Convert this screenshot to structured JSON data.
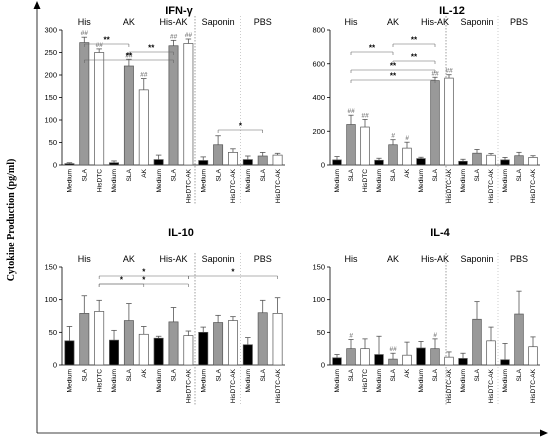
{
  "figure": {
    "y_axis_label": "Cytokine Production (pg/ml)",
    "colors": {
      "Medium": "#000000",
      "SLA": "#999999",
      "HisDTC": "#ffffff",
      "AK": "#ffffff",
      "HisDTC-AK": "#ffffff",
      "outline": "#555555"
    }
  },
  "chart_data": [
    {
      "type": "bar",
      "title": "IFN-γ",
      "ylim": [
        0,
        300
      ],
      "yticks": [
        "0",
        "50",
        "100",
        "150",
        "200",
        "250",
        "300"
      ],
      "groups": [
        {
          "label": "His",
          "categories": [
            "Medium",
            "SLA",
            "HisDTC"
          ],
          "values": [
            3,
            272,
            250
          ],
          "errors": [
            2,
            12,
            8
          ],
          "annotations": [
            "",
            "##",
            "##"
          ]
        },
        {
          "label": "AK",
          "categories": [
            "Medium",
            "SLA",
            "AK"
          ],
          "values": [
            5,
            220,
            167
          ],
          "errors": [
            4,
            15,
            25
          ],
          "annotations": [
            "",
            "##",
            "##"
          ]
        },
        {
          "label": "His-AK",
          "categories": [
            "Medium",
            "SLA",
            "HisDTC-AK"
          ],
          "values": [
            12,
            265,
            270
          ],
          "errors": [
            10,
            12,
            10
          ],
          "annotations": [
            "",
            "##",
            "##"
          ]
        },
        {
          "label": "Saponin",
          "categories": [
            "Medium",
            "SLA",
            "HisDTC-AK"
          ],
          "values": [
            10,
            45,
            28
          ],
          "errors": [
            8,
            20,
            8
          ],
          "annotations": [
            "",
            "",
            ""
          ]
        },
        {
          "label": "PBS",
          "categories": [
            "Medium",
            "SLA",
            "HisDTC-AK"
          ],
          "values": [
            12,
            20,
            22
          ],
          "errors": [
            8,
            8,
            4
          ],
          "annotations": [
            "",
            "",
            ""
          ]
        }
      ],
      "significance": [
        {
          "label": "**",
          "from": [
            0,
            1
          ],
          "to": [
            1,
            1
          ]
        },
        {
          "label": "**",
          "from": [
            1,
            1
          ],
          "to": [
            2,
            1
          ]
        },
        {
          "label": "**",
          "from": [
            0,
            1
          ],
          "to": [
            2,
            1
          ]
        },
        {
          "label": "*",
          "from": [
            3,
            1
          ],
          "to": [
            4,
            1
          ]
        }
      ]
    },
    {
      "type": "bar",
      "title": "IL-12",
      "ylim": [
        0,
        800
      ],
      "yticks": [
        "0",
        "200",
        "400",
        "600",
        "800"
      ],
      "groups": [
        {
          "label": "His",
          "categories": [
            "Medium",
            "SLA",
            "HisDTC"
          ],
          "values": [
            30,
            240,
            225
          ],
          "errors": [
            20,
            55,
            45
          ],
          "annotations": [
            "",
            "##",
            "##"
          ]
        },
        {
          "label": "AK",
          "categories": [
            "Medium",
            "SLA",
            "AK"
          ],
          "values": [
            28,
            120,
            100
          ],
          "errors": [
            12,
            30,
            35
          ],
          "annotations": [
            "",
            "#",
            "#"
          ]
        },
        {
          "label": "His-AK",
          "categories": [
            "Medium",
            "SLA",
            "HisDTC-AK"
          ],
          "values": [
            38,
            500,
            515
          ],
          "errors": [
            8,
            20,
            20
          ],
          "annotations": [
            "",
            "##",
            "##"
          ]
        },
        {
          "label": "Saponin",
          "categories": [
            "Medium",
            "SLA",
            "HisDTC-AK"
          ],
          "values": [
            22,
            70,
            58
          ],
          "errors": [
            12,
            22,
            10
          ],
          "annotations": [
            "",
            "",
            ""
          ]
        },
        {
          "label": "PBS",
          "categories": [
            "Medium",
            "SLA",
            "HisDTC-AK"
          ],
          "values": [
            30,
            55,
            45
          ],
          "errors": [
            15,
            20,
            10
          ],
          "annotations": [
            "",
            "",
            ""
          ]
        }
      ],
      "significance": [
        {
          "label": "**",
          "from": [
            1,
            1
          ],
          "to": [
            2,
            1
          ]
        },
        {
          "label": "**",
          "from": [
            0,
            1
          ],
          "to": [
            1,
            1
          ]
        },
        {
          "label": "**",
          "from": [
            1,
            1
          ],
          "to": [
            2,
            1
          ]
        },
        {
          "label": "**",
          "from": [
            0,
            1
          ],
          "to": [
            2,
            1
          ]
        },
        {
          "label": "**",
          "from": [
            0,
            1
          ],
          "to": [
            2,
            1
          ]
        }
      ]
    },
    {
      "type": "bar",
      "title": "IL-10",
      "ylim": [
        0,
        150
      ],
      "yticks": [
        "0",
        "50",
        "100",
        "150"
      ],
      "groups": [
        {
          "label": "His",
          "categories": [
            "Medium",
            "SLA",
            "HisDTC"
          ],
          "values": [
            37,
            79,
            82
          ],
          "errors": [
            22,
            27,
            17
          ],
          "annotations": [
            "",
            "",
            ""
          ]
        },
        {
          "label": "AK",
          "categories": [
            "Medium",
            "SLA",
            "AK"
          ],
          "values": [
            38,
            68,
            47
          ],
          "errors": [
            15,
            26,
            12
          ],
          "annotations": [
            "",
            "",
            ""
          ]
        },
        {
          "label": "His-AK",
          "categories": [
            "Medium",
            "SLA",
            "HisDTC-AK"
          ],
          "values": [
            41,
            66,
            45
          ],
          "errors": [
            3,
            22,
            7
          ],
          "annotations": [
            "",
            "",
            ""
          ]
        },
        {
          "label": "Saponin",
          "categories": [
            "Medium",
            "SLA",
            "HisDTC-AK"
          ],
          "values": [
            50,
            65,
            68
          ],
          "errors": [
            8,
            11,
            6
          ],
          "annotations": [
            "",
            "",
            ""
          ]
        },
        {
          "label": "PBS",
          "categories": [
            "Medium",
            "SLA",
            "HisDTC-AK"
          ],
          "values": [
            31,
            80,
            79
          ],
          "errors": [
            11,
            19,
            24
          ],
          "annotations": [
            "",
            "",
            ""
          ]
        }
      ],
      "significance": [
        {
          "label": "*",
          "from": [
            0,
            2
          ],
          "to": [
            2,
            2
          ]
        },
        {
          "label": "*",
          "from": [
            0,
            2
          ],
          "to": [
            1,
            2
          ]
        },
        {
          "label": "*",
          "from": [
            0,
            2
          ],
          "to": [
            2,
            2
          ]
        },
        {
          "label": "*",
          "from": [
            2,
            2
          ],
          "to": [
            4,
            2
          ]
        }
      ]
    },
    {
      "type": "bar",
      "title": "IL-4",
      "ylim": [
        0,
        150
      ],
      "yticks": [
        "0",
        "50",
        "100",
        "150"
      ],
      "groups": [
        {
          "label": "His",
          "categories": [
            "Medium",
            "SLA",
            "HisDTC"
          ],
          "values": [
            11,
            25,
            25
          ],
          "errors": [
            5,
            14,
            15
          ],
          "annotations": [
            "",
            "#",
            ""
          ]
        },
        {
          "label": "AK",
          "categories": [
            "Medium",
            "SLA",
            "AK"
          ],
          "values": [
            16,
            9,
            15
          ],
          "errors": [
            28,
            9,
            20
          ],
          "annotations": [
            "",
            "##",
            ""
          ]
        },
        {
          "label": "His-AK",
          "categories": [
            "Medium",
            "SLA",
            "HisDTC-AK"
          ],
          "values": [
            26,
            25,
            12
          ],
          "errors": [
            10,
            15,
            8
          ],
          "annotations": [
            "",
            "#",
            ""
          ]
        },
        {
          "label": "Saponin",
          "categories": [
            "Medium",
            "SLA",
            "HisDTC-AK"
          ],
          "values": [
            10,
            70,
            37
          ],
          "errors": [
            8,
            27,
            21
          ],
          "annotations": [
            "",
            "",
            ""
          ]
        },
        {
          "label": "PBS",
          "categories": [
            "Medium",
            "SLA",
            "HisDTC-AK"
          ],
          "values": [
            8,
            78,
            28
          ],
          "errors": [
            25,
            35,
            15
          ],
          "annotations": [
            "",
            "",
            ""
          ]
        }
      ],
      "significance": []
    }
  ]
}
